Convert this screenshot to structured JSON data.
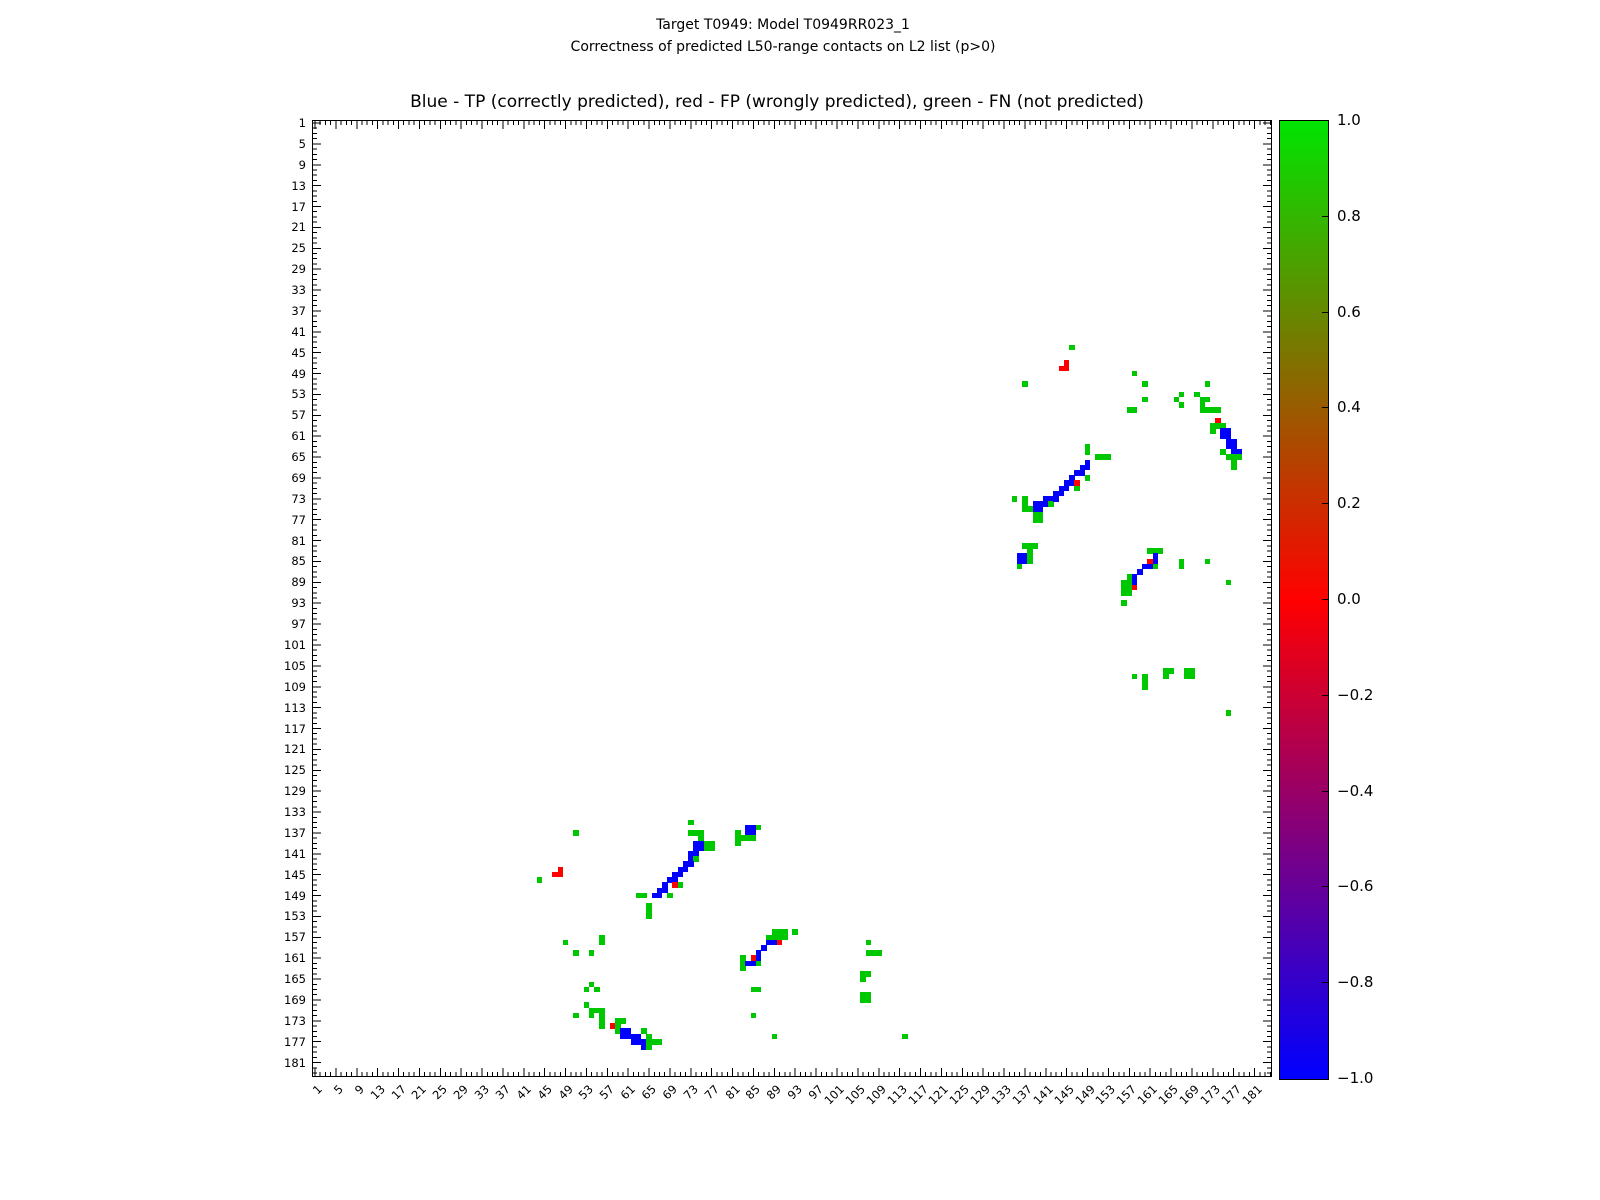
{
  "figure": {
    "title": "Target T0949: Model T0949RR023_1",
    "subtitle": "Correctness of predicted L50-range contacts on L2 list (p>0)",
    "axes_title": "Blue - TP (correctly predicted), red - FP (wrongly predicted), green - FN (not predicted)"
  },
  "axes": {
    "x_ticks": [
      1,
      5,
      9,
      13,
      17,
      21,
      25,
      29,
      33,
      37,
      41,
      45,
      49,
      53,
      57,
      61,
      65,
      69,
      73,
      77,
      81,
      85,
      89,
      93,
      97,
      101,
      105,
      109,
      113,
      117,
      121,
      125,
      129,
      133,
      137,
      141,
      145,
      149,
      153,
      157,
      161,
      165,
      169,
      173,
      177,
      181
    ],
    "y_ticks": [
      1,
      5,
      9,
      13,
      17,
      21,
      25,
      29,
      33,
      37,
      41,
      45,
      49,
      53,
      57,
      61,
      65,
      69,
      73,
      77,
      81,
      85,
      89,
      93,
      97,
      101,
      105,
      109,
      113,
      117,
      121,
      125,
      129,
      133,
      137,
      141,
      145,
      149,
      153,
      157,
      161,
      165,
      169,
      173,
      177,
      181
    ]
  },
  "colorbar": {
    "labels": [
      "1.0",
      "0.8",
      "0.6",
      "0.4",
      "0.2",
      "0.0",
      "−0.2",
      "−0.4",
      "−0.6",
      "−0.8",
      "−1.0"
    ],
    "top_color": "#00e400",
    "mid_color": "#ff0000",
    "bottom_color": "#0000ff",
    "vmax": 1.0,
    "vmin": -1.0
  },
  "chart_data": {
    "type": "heatmap",
    "title": "Blue - TP (correctly predicted), red - FP (wrongly predicted), green - FN (not predicted)",
    "xlabel": "",
    "ylabel": "",
    "x_range": [
      1,
      183
    ],
    "y_range": [
      1,
      183
    ],
    "grid": false,
    "symmetric": true,
    "legend": {
      "tp": "TP (correctly predicted)",
      "fp": "FP (wrongly predicted)",
      "fn": "FN (not predicted)"
    },
    "colors": {
      "tp": "#0000ff",
      "fp": "#ff0000",
      "fn": "#00c800"
    },
    "cells": [
      [
        146,
        44,
        "fn"
      ],
      [
        145,
        47,
        "fp"
      ],
      [
        144,
        48,
        "fp"
      ],
      [
        145,
        48,
        "fp"
      ],
      [
        137,
        51,
        "fn"
      ],
      [
        158,
        49,
        "fn"
      ],
      [
        160,
        51,
        "fn"
      ],
      [
        160,
        54,
        "fn"
      ],
      [
        157,
        56,
        "fn"
      ],
      [
        158,
        56,
        "fn"
      ],
      [
        167,
        53,
        "fn"
      ],
      [
        166,
        54,
        "fn"
      ],
      [
        167,
        55,
        "fn"
      ],
      [
        172,
        51,
        "fn"
      ],
      [
        170,
        53,
        "fn"
      ],
      [
        171,
        54,
        "fn"
      ],
      [
        172,
        54,
        "fn"
      ],
      [
        171,
        55,
        "fn"
      ],
      [
        171,
        56,
        "fn"
      ],
      [
        172,
        56,
        "fn"
      ],
      [
        173,
        56,
        "fn"
      ],
      [
        174,
        56,
        "fn"
      ],
      [
        174,
        58,
        "fp"
      ],
      [
        173,
        59,
        "fn"
      ],
      [
        174,
        59,
        "fn"
      ],
      [
        175,
        59,
        "fn"
      ],
      [
        173,
        60,
        "fn"
      ],
      [
        175,
        60,
        "tp"
      ],
      [
        176,
        60,
        "tp"
      ],
      [
        175,
        61,
        "tp"
      ],
      [
        176,
        61,
        "tp"
      ],
      [
        176,
        62,
        "tp"
      ],
      [
        177,
        62,
        "tp"
      ],
      [
        176,
        63,
        "tp"
      ],
      [
        177,
        63,
        "tp"
      ],
      [
        177,
        64,
        "tp"
      ],
      [
        178,
        64,
        "tp"
      ],
      [
        175,
        64,
        "fn"
      ],
      [
        176,
        65,
        "fn"
      ],
      [
        177,
        65,
        "fn"
      ],
      [
        178,
        65,
        "fn"
      ],
      [
        177,
        66,
        "fn"
      ],
      [
        177,
        67,
        "fn"
      ],
      [
        135,
        73,
        "fn"
      ],
      [
        137,
        73,
        "fn"
      ],
      [
        137,
        74,
        "fn"
      ],
      [
        137,
        75,
        "fn"
      ],
      [
        138,
        75,
        "fn"
      ],
      [
        139,
        74,
        "tp"
      ],
      [
        140,
        74,
        "tp"
      ],
      [
        139,
        75,
        "tp"
      ],
      [
        140,
        75,
        "tp"
      ],
      [
        139,
        76,
        "fn"
      ],
      [
        140,
        76,
        "fn"
      ],
      [
        139,
        77,
        "fn"
      ],
      [
        140,
        77,
        "fn"
      ],
      [
        141,
        73,
        "tp"
      ],
      [
        141,
        74,
        "tp"
      ],
      [
        142,
        73,
        "tp"
      ],
      [
        142,
        74,
        "fn"
      ],
      [
        143,
        72,
        "tp"
      ],
      [
        144,
        72,
        "tp"
      ],
      [
        143,
        73,
        "tp"
      ],
      [
        144,
        71,
        "tp"
      ],
      [
        145,
        70,
        "tp"
      ],
      [
        145,
        71,
        "tp"
      ],
      [
        146,
        70,
        "tp"
      ],
      [
        146,
        69,
        "tp"
      ],
      [
        147,
        70,
        "fp"
      ],
      [
        147,
        71,
        "fn"
      ],
      [
        149,
        69,
        "fn"
      ],
      [
        147,
        68,
        "tp"
      ],
      [
        148,
        68,
        "tp"
      ],
      [
        148,
        67,
        "tp"
      ],
      [
        149,
        66,
        "tp"
      ],
      [
        149,
        67,
        "tp"
      ],
      [
        149,
        63,
        "fn"
      ],
      [
        149,
        64,
        "fn"
      ],
      [
        151,
        65,
        "fn"
      ],
      [
        152,
        65,
        "fn"
      ],
      [
        153,
        65,
        "fn"
      ],
      [
        136,
        84,
        "tp"
      ],
      [
        137,
        84,
        "tp"
      ],
      [
        136,
        85,
        "tp"
      ],
      [
        137,
        85,
        "tp"
      ],
      [
        137,
        82,
        "fn"
      ],
      [
        138,
        82,
        "fn"
      ],
      [
        139,
        82,
        "fn"
      ],
      [
        138,
        83,
        "fn"
      ],
      [
        138,
        84,
        "fn"
      ],
      [
        138,
        85,
        "fn"
      ],
      [
        136,
        86,
        "fn"
      ],
      [
        161,
        83,
        "fn"
      ],
      [
        162,
        83,
        "fn"
      ],
      [
        163,
        83,
        "fn"
      ],
      [
        162,
        84,
        "tp"
      ],
      [
        162,
        85,
        "tp"
      ],
      [
        161,
        85,
        "fp"
      ],
      [
        162,
        86,
        "fn"
      ],
      [
        161,
        86,
        "tp"
      ],
      [
        160,
        86,
        "tp"
      ],
      [
        159,
        87,
        "tp"
      ],
      [
        157,
        88,
        "fn"
      ],
      [
        158,
        88,
        "tp"
      ],
      [
        158,
        89,
        "tp"
      ],
      [
        158,
        90,
        "fp"
      ],
      [
        156,
        89,
        "fn"
      ],
      [
        157,
        89,
        "fn"
      ],
      [
        156,
        90,
        "fn"
      ],
      [
        157,
        90,
        "fn"
      ],
      [
        156,
        91,
        "fn"
      ],
      [
        157,
        91,
        "fn"
      ],
      [
        156,
        93,
        "fn"
      ],
      [
        167,
        85,
        "fn"
      ],
      [
        167,
        86,
        "fn"
      ],
      [
        172,
        85,
        "fn"
      ],
      [
        176,
        89,
        "fn"
      ],
      [
        158,
        107,
        "fn"
      ],
      [
        160,
        107,
        "fn"
      ],
      [
        160,
        108,
        "fn"
      ],
      [
        160,
        109,
        "fn"
      ],
      [
        164,
        106,
        "fn"
      ],
      [
        165,
        106,
        "fn"
      ],
      [
        164,
        107,
        "fn"
      ],
      [
        168,
        106,
        "fn"
      ],
      [
        169,
        106,
        "fn"
      ],
      [
        168,
        107,
        "fn"
      ],
      [
        169,
        107,
        "fn"
      ],
      [
        176,
        114,
        "fn"
      ]
    ]
  }
}
